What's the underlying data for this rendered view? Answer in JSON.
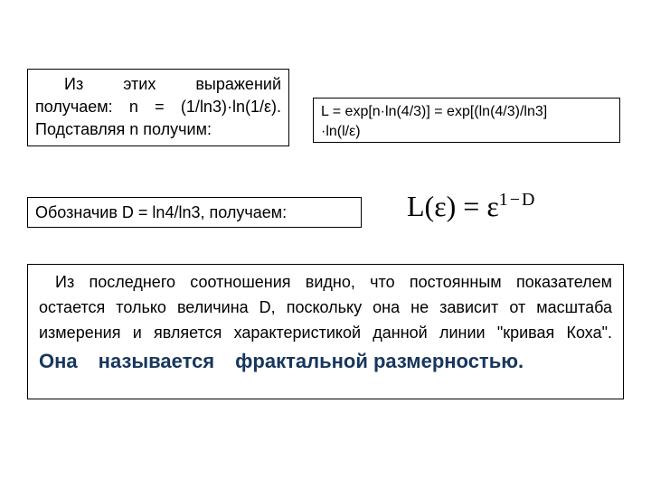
{
  "box1": {
    "text_a": "Из этих выражений получаем: n = (1/ln3)",
    "dot": "·",
    "text_b": "ln(1/ε). Подставляя n получим:"
  },
  "box2": {
    "line1": "L = exp[n·ln(4/3)] = exp[(ln(4/3)/ln3]",
    "line2": "·ln(l/ε)"
  },
  "box3": {
    "text": "Обозначив D = ln4/ln3, получаем:"
  },
  "formula": {
    "lhs": "L(ε)",
    "eq": " = ",
    "base": "ε",
    "sup": "1−D"
  },
  "box4": {
    "text_a": "Из последнего соотношения видно, что постоянным показателем остается только величина D, поскольку она не зависит от масштаба измерения и является характеристикой данной линии \"кривая Коха\".",
    "em1": "Она",
    "em2": "называется",
    "em3": "фрактальной размерностью."
  },
  "colors": {
    "background": "#ffffff",
    "text": "#000000",
    "border": "#000000",
    "emphasis": "#17365d"
  },
  "typography": {
    "body_font": "Arial",
    "formula_font": "Times New Roman",
    "body_fontsize_pt": 14,
    "formula_fontsize_pt": 24,
    "emphasis_fontsize_pt": 17
  }
}
